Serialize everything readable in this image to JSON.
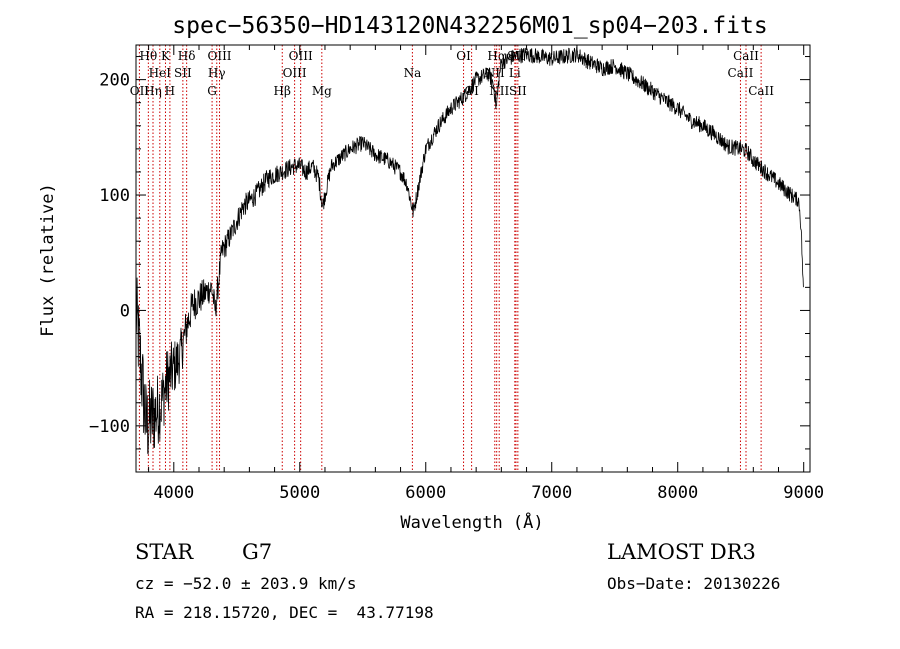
{
  "chart_data": {
    "type": "line",
    "title": "spec−56350−HD143120N432256M01_sp04−203.fits",
    "xlabel": "Wavelength (Å)",
    "ylabel": "Flux (relative)",
    "xlim": [
      3700,
      9050
    ],
    "ylim": [
      -140,
      230
    ],
    "x_ticks": [
      4000,
      5000,
      6000,
      7000,
      8000,
      9000
    ],
    "y_ticks": [
      -100,
      0,
      100,
      200
    ],
    "x_tick_labels": [
      "4000",
      "5000",
      "6000",
      "7000",
      "8000",
      "9000"
    ],
    "y_tick_labels": [
      "−100",
      "0",
      "100",
      "200"
    ],
    "spectrum_anchors": {
      "x": [
        3700,
        3780,
        3850,
        3900,
        3950,
        4000,
        4050,
        4100,
        4150,
        4200,
        4300,
        4330,
        4380,
        4450,
        4550,
        4650,
        4750,
        4850,
        4950,
        5000,
        5050,
        5100,
        5150,
        5180,
        5250,
        5400,
        5500,
        5600,
        5700,
        5800,
        5850,
        5880,
        5900,
        5920,
        6000,
        6100,
        6200,
        6300,
        6400,
        6500,
        6540,
        6560,
        6580,
        6600,
        6700,
        6800,
        6900,
        7000,
        7100,
        7200,
        7300,
        7400,
        7500,
        7600,
        7700,
        7800,
        7900,
        8000,
        8100,
        8200,
        8300,
        8400,
        8500,
        8550,
        8600,
        8650,
        8700,
        8800,
        8900,
        8960,
        8970,
        8980,
        8990,
        9000
      ],
      "y": [
        0,
        -100,
        -90,
        -80,
        -60,
        -50,
        -40,
        -15,
        5,
        10,
        20,
        0,
        50,
        65,
        90,
        100,
        115,
        120,
        125,
        125,
        120,
        125,
        115,
        90,
        125,
        140,
        145,
        135,
        130,
        120,
        110,
        95,
        85,
        95,
        140,
        160,
        175,
        185,
        200,
        205,
        195,
        175,
        200,
        215,
        220,
        222,
        220,
        218,
        220,
        222,
        215,
        210,
        212,
        205,
        198,
        190,
        182,
        175,
        165,
        160,
        152,
        142,
        140,
        138,
        130,
        125,
        120,
        110,
        100,
        95,
        85,
        70,
        40,
        10
      ],
      "noise_amplitude": [
        40,
        40,
        35,
        30,
        30,
        25,
        22,
        18,
        15,
        15,
        12,
        12,
        12,
        10,
        10,
        9,
        9,
        8,
        8,
        8,
        8,
        8,
        8,
        8,
        7,
        7,
        7,
        7,
        7,
        7,
        7,
        7,
        7,
        7,
        7,
        7,
        7,
        7,
        7,
        7,
        7,
        7,
        7,
        7,
        7,
        7,
        7,
        7,
        7,
        7,
        7,
        7,
        7,
        7,
        7,
        7,
        7,
        7,
        7,
        7,
        7,
        7,
        7,
        7,
        7,
        7,
        7,
        7,
        7,
        6,
        6,
        6,
        6,
        6
      ]
    },
    "spectral_lines": [
      {
        "name": "Hθ",
        "wavelength": 3798,
        "row": 1
      },
      {
        "name": "OII",
        "wavelength": 3727,
        "row": 3
      },
      {
        "name": "Hη",
        "wavelength": 3835,
        "row": 3
      },
      {
        "name": "HeI",
        "wavelength": 3889,
        "row": 2
      },
      {
        "name": "K",
        "wavelength": 3934,
        "row": 1
      },
      {
        "name": "H",
        "wavelength": 3969,
        "row": 3
      },
      {
        "name": "SII",
        "wavelength": 4072,
        "row": 2
      },
      {
        "name": "Hδ",
        "wavelength": 4102,
        "row": 1
      },
      {
        "name": "G",
        "wavelength": 4304,
        "row": 3
      },
      {
        "name": "Hγ",
        "wavelength": 4341,
        "row": 2
      },
      {
        "name": "OIII",
        "wavelength": 4363,
        "row": 1
      },
      {
        "name": "Hβ",
        "wavelength": 4861,
        "row": 3
      },
      {
        "name": "OIII",
        "wavelength": 4959,
        "row": 2
      },
      {
        "name": "OIII",
        "wavelength": 5007,
        "row": 1
      },
      {
        "name": "Mg",
        "wavelength": 5175,
        "row": 3
      },
      {
        "name": "Na",
        "wavelength": 5894,
        "row": 2
      },
      {
        "name": "OI",
        "wavelength": 6300,
        "row": 1
      },
      {
        "name": "OI",
        "wavelength": 6364,
        "row": 3
      },
      {
        "name": "NII",
        "wavelength": 6548,
        "row": 2
      },
      {
        "name": "Hα",
        "wavelength": 6563,
        "row": 1
      },
      {
        "name": "NII",
        "wavelength": 6583,
        "row": 3
      },
      {
        "name": "Li",
        "wavelength": 6707,
        "row": 2
      },
      {
        "name": "SII",
        "wavelength": 6716,
        "row": 1
      },
      {
        "name": "SII",
        "wavelength": 6731,
        "row": 3
      },
      {
        "name": "CaII",
        "wavelength": 8498,
        "row": 2
      },
      {
        "name": "CaII",
        "wavelength": 8542,
        "row": 1
      },
      {
        "name": "CaII",
        "wavelength": 8662,
        "row": 3
      }
    ]
  },
  "info": {
    "object_class": "STAR",
    "subclass": "G7",
    "survey": "LAMOST DR3",
    "redshift_line": "cz = −52.0 ± 203.9 km/s",
    "obs_date_line": "Obs−Date: 20130226",
    "coords_line": "RA = 218.15720, DEC =  43.77198"
  },
  "colors": {
    "spectrum": "#000000",
    "line_markers": "#cc0000",
    "axes": "#000000",
    "background": "#ffffff"
  }
}
